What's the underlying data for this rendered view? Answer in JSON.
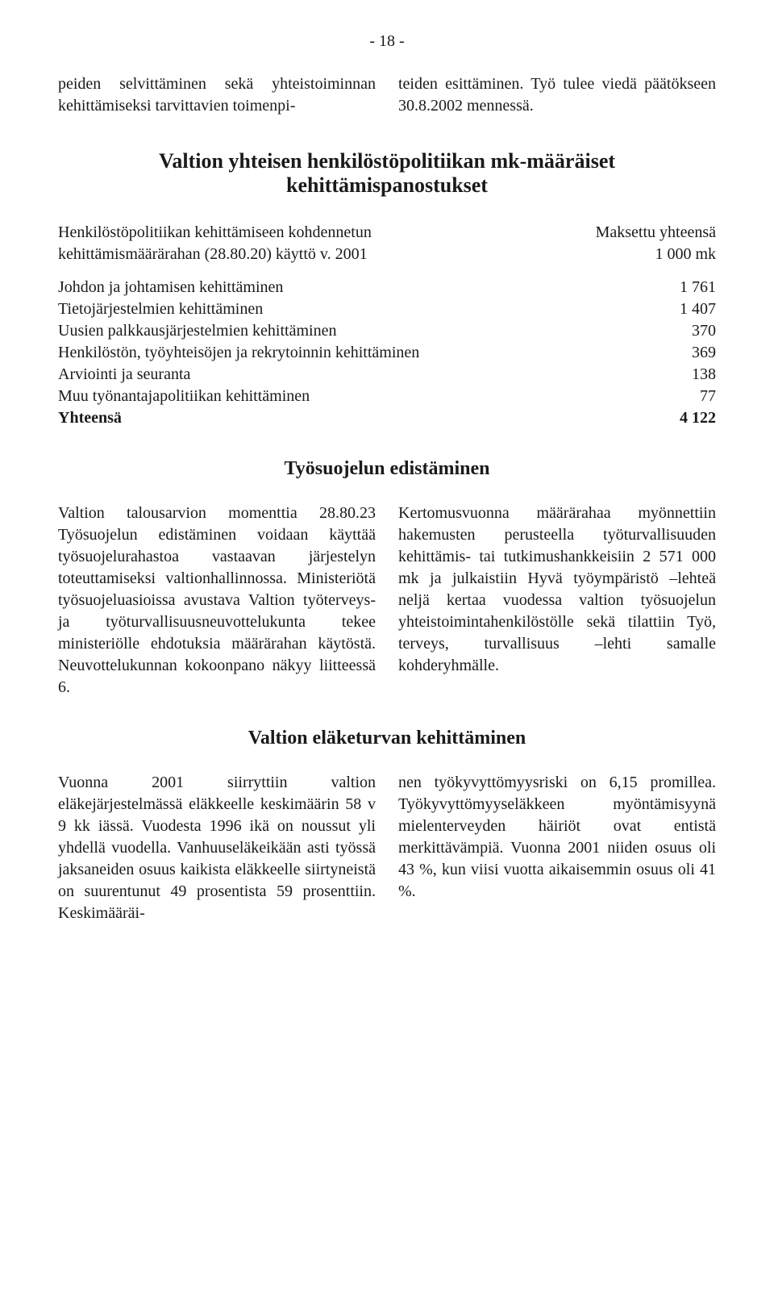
{
  "page_number": "- 18 -",
  "intro_left": "peiden selvittäminen sekä yhteistoiminnan kehittämiseksi tarvittavien toimenpi-",
  "intro_right": "teiden esittäminen. Työ tulee viedä päätökseen 30.8.2002 mennessä.",
  "section1_title": "Valtion yhteisen henkilöstöpolitiikan mk-määräiset kehittämispanostukset",
  "table1": {
    "header_left_line1": "Henkilöstöpolitiikan kehittämiseen kohdennetun",
    "header_left_line2": "kehittämismäärärahan (28.80.20) käyttö v. 2001",
    "header_right_line1": "Maksettu yhteensä",
    "header_right_line2": "1 000 mk",
    "rows": [
      {
        "label": "Johdon ja johtamisen kehittäminen",
        "value": "1 761"
      },
      {
        "label": "Tietojärjestelmien kehittäminen",
        "value": "1 407"
      },
      {
        "label": "Uusien palkkausjärjestelmien kehittäminen",
        "value": "370"
      },
      {
        "label": "Henkilöstön, työyhteisöjen ja rekrytoinnin kehittäminen",
        "value": "369"
      },
      {
        "label": "Arviointi ja seuranta",
        "value": "138"
      },
      {
        "label": "Muu työnantajapolitiikan kehittäminen",
        "value": "77"
      }
    ],
    "total_label": "Yhteensä",
    "total_value": "4 122"
  },
  "section2_title": "Työsuojelun edistäminen",
  "section2_left": "Valtion talousarvion momenttia 28.80.23 Työsuojelun edistäminen voidaan käyttää työsuojelurahastoa vastaavan järjestelyn toteuttamiseksi valtionhallinnossa. Ministeriötä työsuojeluasioissa avustava Valtion työterveys- ja työturvallisuusneuvottelukunta tekee ministeriölle ehdotuksia määrärahan käytöstä. Neuvottelukunnan kokoonpano näkyy liitteessä 6.",
  "section2_right": "Kertomusvuonna määrärahaa myönnettiin hakemusten perusteella työturvallisuuden kehittämis- tai tutkimushankkeisiin 2 571 000 mk ja julkaistiin Hyvä työympäristö –lehteä neljä kertaa vuodessa valtion työsuojelun yhteistoimintahenkilöstölle sekä tilattiin Työ, terveys, turvallisuus –lehti samalle kohderyhmälle.",
  "section3_title": "Valtion eläketurvan kehittäminen",
  "section3_left": "Vuonna 2001 siirryttiin valtion eläkejärjestelmässä eläkkeelle keskimäärin 58 v 9 kk iässä. Vuodesta 1996 ikä on noussut yli yhdellä vuodella. Vanhuuseläkeikään asti työssä jaksaneiden osuus kaikista eläkkeelle siirtyneistä on suurentunut 49 prosentista 59 prosenttiin. Keskimääräi-",
  "section3_right": "nen työkyvyttömyysriski on 6,15 promillea. Työkyvyttömyyseläkkeen myöntämisyynä mielenterveyden häiriöt ovat entistä merkittävämpiä. Vuonna 2001 niiden osuus oli 43 %, kun viisi vuotta aikaisemmin osuus oli 41 %."
}
